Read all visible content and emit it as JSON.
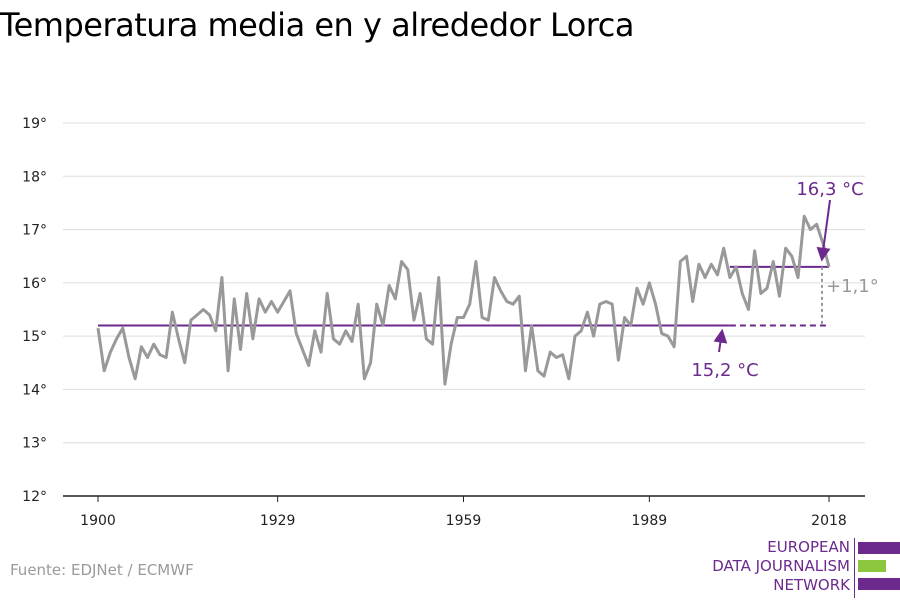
{
  "title": "Temperatura media en y alrededor Lorca",
  "source": "Fuente: EDJNet / ECMWF",
  "logo": {
    "line1": "EUROPEAN",
    "line2": "DATA JOURNALISM",
    "line3": "NETWORK",
    "colors": {
      "purple": "#6c2a8e",
      "green": "#8cc63f"
    }
  },
  "colors": {
    "series": "#999999",
    "baseline": "#6c2a8e",
    "grid": "#dddddd",
    "axis": "#222222",
    "delta": "#999999"
  },
  "chart_data": {
    "type": "line",
    "title": "Temperatura media en y alrededor Lorca",
    "xlabel": "",
    "ylabel": "",
    "xlim": [
      1900,
      2018
    ],
    "ylim": [
      12,
      19
    ],
    "x_ticks": [
      1900,
      1929,
      1959,
      1989,
      2018
    ],
    "y_ticks": [
      {
        "value": 12,
        "label": "12°"
      },
      {
        "value": 13,
        "label": "13°"
      },
      {
        "value": 14,
        "label": "14°"
      },
      {
        "value": 15,
        "label": "15°"
      },
      {
        "value": 16,
        "label": "16°"
      },
      {
        "value": 17,
        "label": "17°"
      },
      {
        "value": 18,
        "label": "18°"
      },
      {
        "value": 19,
        "label": "19°"
      }
    ],
    "grid": true,
    "series": [
      {
        "x_start": 1900,
        "values": [
          15.15,
          14.35,
          14.7,
          14.95,
          15.15,
          14.6,
          14.2,
          14.8,
          14.6,
          14.85,
          14.65,
          14.6,
          15.45,
          14.95,
          14.5,
          15.3,
          15.4,
          15.5,
          15.4,
          15.1,
          16.1,
          14.35,
          15.7,
          14.75,
          15.8,
          14.95,
          15.7,
          15.45,
          15.65,
          15.45,
          15.65,
          15.85,
          15.05,
          14.75,
          14.45,
          15.1,
          14.7,
          15.8,
          14.95,
          14.85,
          15.1,
          14.9,
          15.6,
          14.2,
          14.5,
          15.6,
          15.2,
          15.95,
          15.7,
          16.4,
          16.25,
          15.3,
          15.8,
          14.95,
          14.85,
          16.1,
          14.1,
          14.85,
          15.35,
          15.35,
          15.6,
          16.4,
          15.35,
          15.3,
          16.1,
          15.85,
          15.65,
          15.6,
          15.75,
          14.35,
          15.2,
          14.35,
          14.25,
          14.7,
          14.6,
          14.65,
          14.2,
          15.0,
          15.1,
          15.45,
          15.0,
          15.6,
          15.65,
          15.6,
          14.55,
          15.35,
          15.2,
          15.9,
          15.6,
          16.0,
          15.6,
          15.05,
          15.0,
          14.8,
          16.4,
          16.5,
          15.65,
          16.35,
          16.1,
          16.35,
          16.15,
          16.65,
          16.1,
          16.3,
          15.8,
          15.5,
          16.6,
          15.8,
          15.9,
          16.4,
          15.75,
          16.65,
          16.5,
          16.1,
          17.25,
          17.0,
          17.1,
          16.75,
          16.3
        ]
      }
    ],
    "baselines": [
      {
        "value": 15.2,
        "from": 1900,
        "to": 2002,
        "style": "solid"
      },
      {
        "value": 15.2,
        "from": 2002,
        "to": 2018,
        "style": "dashed"
      },
      {
        "value": 16.3,
        "from": 2002,
        "to": 2018,
        "style": "solid"
      }
    ],
    "annotations": [
      {
        "text": "16,3 °C",
        "x": 2018,
        "y": 16.3
      },
      {
        "text": "15,2 °C",
        "x": 2002,
        "y": 15.2
      },
      {
        "text": "+1,1°",
        "x": 2018,
        "y": 15.75
      }
    ]
  }
}
